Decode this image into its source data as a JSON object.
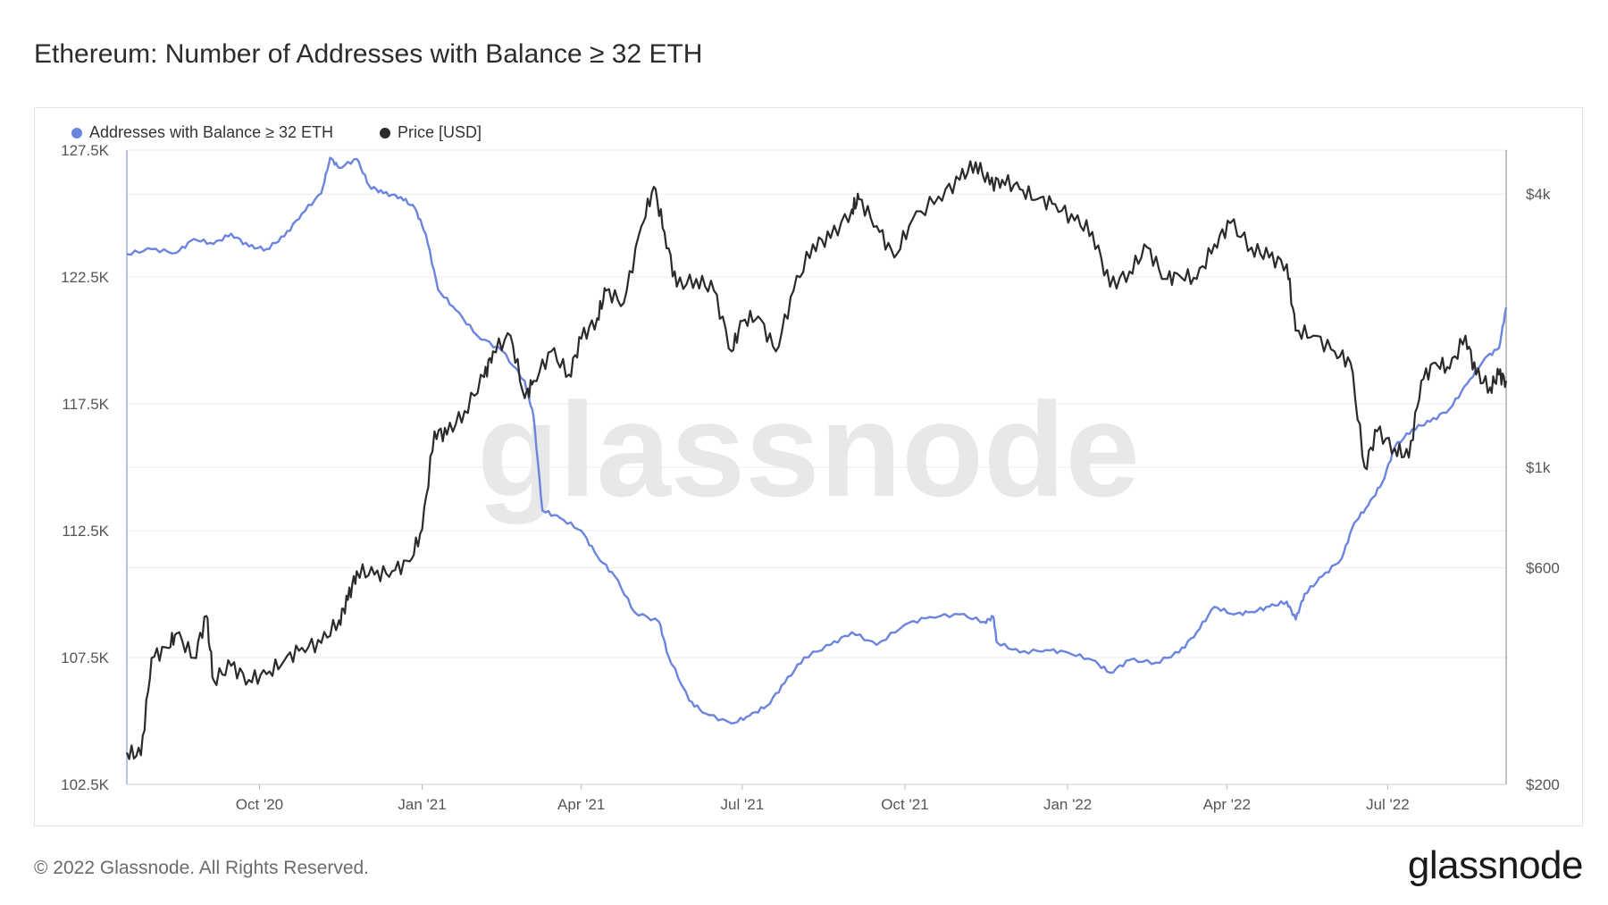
{
  "title": "Ethereum: Number of Addresses with Balance ≥ 32 ETH",
  "footer": "© 2022 Glassnode. All Rights Reserved.",
  "brand": "glassnode",
  "watermark": "glassnode",
  "colors": {
    "addresses": "#6b84de",
    "price": "#2b2b2b",
    "grid": "#ececec",
    "axis": "#9fb0e6"
  },
  "chart_data": {
    "type": "line",
    "x_tick_labels": [
      "Oct '20",
      "Jan '21",
      "Apr '21",
      "Jul '21",
      "Oct '21",
      "Jan '22",
      "Apr '22",
      "Jul '22"
    ],
    "x_tick_dates": [
      "2020-10-01",
      "2021-01-01",
      "2021-04-01",
      "2021-07-01",
      "2021-10-01",
      "2022-01-01",
      "2022-04-01",
      "2022-07-01"
    ],
    "x_range": [
      "2020-07-18",
      "2022-09-06"
    ],
    "y_left": {
      "ticks": [
        102500,
        107500,
        112500,
        117500,
        122500,
        127500
      ],
      "tick_labels": [
        "102.5K",
        "107.5K",
        "112.5K",
        "117.5K",
        "122.5K",
        "127.5K"
      ],
      "range": [
        102500,
        127500
      ]
    },
    "y_right": {
      "scale": "log",
      "ticks": [
        200,
        600,
        1000,
        4000
      ],
      "tick_labels": [
        "$200",
        "$600",
        "$1k",
        "$4k"
      ],
      "range": [
        200,
        5000
      ]
    },
    "grid": true,
    "legend": "top-left",
    "series": [
      {
        "name": "Addresses with Balance ≥ 32 ETH",
        "axis": "left",
        "points": [
          [
            "2020-07-18",
            123400
          ],
          [
            "2020-08-01",
            123600
          ],
          [
            "2020-08-15",
            123450
          ],
          [
            "2020-08-25",
            124000
          ],
          [
            "2020-09-05",
            123800
          ],
          [
            "2020-09-15",
            124200
          ],
          [
            "2020-09-25",
            123700
          ],
          [
            "2020-10-05",
            123600
          ],
          [
            "2020-10-15",
            124100
          ],
          [
            "2020-10-25",
            125000
          ],
          [
            "2020-11-05",
            125800
          ],
          [
            "2020-11-10",
            127200
          ],
          [
            "2020-11-15",
            126800
          ],
          [
            "2020-11-25",
            127150
          ],
          [
            "2020-12-02",
            126100
          ],
          [
            "2020-12-10",
            125800
          ],
          [
            "2020-12-20",
            125650
          ],
          [
            "2020-12-28",
            125200
          ],
          [
            "2021-01-03",
            124200
          ],
          [
            "2021-01-10",
            122000
          ],
          [
            "2021-01-20",
            121200
          ],
          [
            "2021-02-01",
            120200
          ],
          [
            "2021-02-15",
            119600
          ],
          [
            "2021-02-28",
            118400
          ],
          [
            "2021-03-05",
            117000
          ],
          [
            "2021-03-10",
            113300
          ],
          [
            "2021-03-20",
            113000
          ],
          [
            "2021-04-01",
            112500
          ],
          [
            "2021-04-10",
            111500
          ],
          [
            "2021-04-20",
            110700
          ],
          [
            "2021-05-01",
            109300
          ],
          [
            "2021-05-15",
            108900
          ],
          [
            "2021-05-20",
            107600
          ],
          [
            "2021-06-01",
            105800
          ],
          [
            "2021-06-10",
            105300
          ],
          [
            "2021-06-25",
            104900
          ],
          [
            "2021-07-05",
            105200
          ],
          [
            "2021-07-15",
            105600
          ],
          [
            "2021-07-25",
            106500
          ],
          [
            "2021-08-05",
            107500
          ],
          [
            "2021-08-20",
            108000
          ],
          [
            "2021-09-01",
            108500
          ],
          [
            "2021-09-15",
            108000
          ],
          [
            "2021-10-01",
            108800
          ],
          [
            "2021-10-15",
            109100
          ],
          [
            "2021-11-01",
            109200
          ],
          [
            "2021-11-15",
            108900
          ],
          [
            "2021-11-20",
            109100
          ],
          [
            "2021-11-22",
            108100
          ],
          [
            "2021-12-05",
            107700
          ],
          [
            "2021-12-20",
            107800
          ],
          [
            "2022-01-01",
            107700
          ],
          [
            "2022-01-15",
            107400
          ],
          [
            "2022-01-25",
            106900
          ],
          [
            "2022-02-05",
            107400
          ],
          [
            "2022-02-20",
            107300
          ],
          [
            "2022-03-05",
            107700
          ],
          [
            "2022-03-15",
            108500
          ],
          [
            "2022-03-25",
            109500
          ],
          [
            "2022-04-05",
            109200
          ],
          [
            "2022-04-15",
            109300
          ],
          [
            "2022-04-25",
            109500
          ],
          [
            "2022-05-05",
            109700
          ],
          [
            "2022-05-10",
            109000
          ],
          [
            "2022-05-15",
            110000
          ],
          [
            "2022-05-25",
            110700
          ],
          [
            "2022-06-05",
            111400
          ],
          [
            "2022-06-12",
            112800
          ],
          [
            "2022-06-20",
            113500
          ],
          [
            "2022-06-28",
            114400
          ],
          [
            "2022-07-05",
            115800
          ],
          [
            "2022-07-15",
            116500
          ],
          [
            "2022-07-25",
            116800
          ],
          [
            "2022-08-05",
            117300
          ],
          [
            "2022-08-15",
            118300
          ],
          [
            "2022-08-25",
            119300
          ],
          [
            "2022-09-02",
            119700
          ],
          [
            "2022-09-06",
            121300
          ]
        ]
      },
      {
        "name": "Price [USD]",
        "axis": "right",
        "points": [
          [
            "2020-07-18",
            235
          ],
          [
            "2020-07-26",
            232
          ],
          [
            "2020-08-01",
            380
          ],
          [
            "2020-08-10",
            400
          ],
          [
            "2020-08-15",
            430
          ],
          [
            "2020-08-25",
            380
          ],
          [
            "2020-09-01",
            470
          ],
          [
            "2020-09-05",
            340
          ],
          [
            "2020-09-15",
            365
          ],
          [
            "2020-09-25",
            340
          ],
          [
            "2020-10-05",
            350
          ],
          [
            "2020-10-15",
            375
          ],
          [
            "2020-10-25",
            400
          ],
          [
            "2020-11-05",
            410
          ],
          [
            "2020-11-15",
            460
          ],
          [
            "2020-11-20",
            510
          ],
          [
            "2020-11-25",
            590
          ],
          [
            "2020-12-05",
            580
          ],
          [
            "2020-12-15",
            590
          ],
          [
            "2020-12-25",
            620
          ],
          [
            "2021-01-01",
            730
          ],
          [
            "2021-01-08",
            1200
          ],
          [
            "2021-01-15",
            1180
          ],
          [
            "2021-01-25",
            1330
          ],
          [
            "2021-02-05",
            1580
          ],
          [
            "2021-02-10",
            1800
          ],
          [
            "2021-02-20",
            1950
          ],
          [
            "2021-02-28",
            1420
          ],
          [
            "2021-03-05",
            1550
          ],
          [
            "2021-03-15",
            1800
          ],
          [
            "2021-03-25",
            1600
          ],
          [
            "2021-04-01",
            1920
          ],
          [
            "2021-04-10",
            2130
          ],
          [
            "2021-04-15",
            2450
          ],
          [
            "2021-04-25",
            2300
          ],
          [
            "2021-05-05",
            3400
          ],
          [
            "2021-05-12",
            4150
          ],
          [
            "2021-05-18",
            3300
          ],
          [
            "2021-05-25",
            2500
          ],
          [
            "2021-06-05",
            2600
          ],
          [
            "2021-06-15",
            2450
          ],
          [
            "2021-06-25",
            1800
          ],
          [
            "2021-07-01",
            2100
          ],
          [
            "2021-07-10",
            2150
          ],
          [
            "2021-07-20",
            1800
          ],
          [
            "2021-07-30",
            2450
          ],
          [
            "2021-08-10",
            3100
          ],
          [
            "2021-08-20",
            3200
          ],
          [
            "2021-09-01",
            3700
          ],
          [
            "2021-09-05",
            3900
          ],
          [
            "2021-09-15",
            3400
          ],
          [
            "2021-09-25",
            2900
          ],
          [
            "2021-10-05",
            3500
          ],
          [
            "2021-10-20",
            3950
          ],
          [
            "2021-11-01",
            4300
          ],
          [
            "2021-11-10",
            4700
          ],
          [
            "2021-11-18",
            4200
          ],
          [
            "2021-11-25",
            4300
          ],
          [
            "2021-12-05",
            4100
          ],
          [
            "2021-12-15",
            3900
          ],
          [
            "2021-12-25",
            3800
          ],
          [
            "2022-01-05",
            3500
          ],
          [
            "2022-01-15",
            3300
          ],
          [
            "2022-01-25",
            2500
          ],
          [
            "2022-02-05",
            2700
          ],
          [
            "2022-02-15",
            3050
          ],
          [
            "2022-02-25",
            2600
          ],
          [
            "2022-03-05",
            2650
          ],
          [
            "2022-03-15",
            2600
          ],
          [
            "2022-03-25",
            3100
          ],
          [
            "2022-04-03",
            3450
          ],
          [
            "2022-04-15",
            3050
          ],
          [
            "2022-04-25",
            2900
          ],
          [
            "2022-05-05",
            2800
          ],
          [
            "2022-05-10",
            2000
          ],
          [
            "2022-05-20",
            1950
          ],
          [
            "2022-06-01",
            1800
          ],
          [
            "2022-06-10",
            1700
          ],
          [
            "2022-06-18",
            1000
          ],
          [
            "2022-06-25",
            1200
          ],
          [
            "2022-07-05",
            1100
          ],
          [
            "2022-07-13",
            1050
          ],
          [
            "2022-07-20",
            1550
          ],
          [
            "2022-07-28",
            1700
          ],
          [
            "2022-08-05",
            1650
          ],
          [
            "2022-08-14",
            1950
          ],
          [
            "2022-08-20",
            1600
          ],
          [
            "2022-08-28",
            1500
          ],
          [
            "2022-09-02",
            1600
          ],
          [
            "2022-09-06",
            1550
          ]
        ]
      }
    ]
  },
  "legend_items": [
    {
      "label": "Addresses with Balance ≥ 32 ETH",
      "color": "#6b84de"
    },
    {
      "label": "Price [USD]",
      "color": "#2b2b2b"
    }
  ]
}
